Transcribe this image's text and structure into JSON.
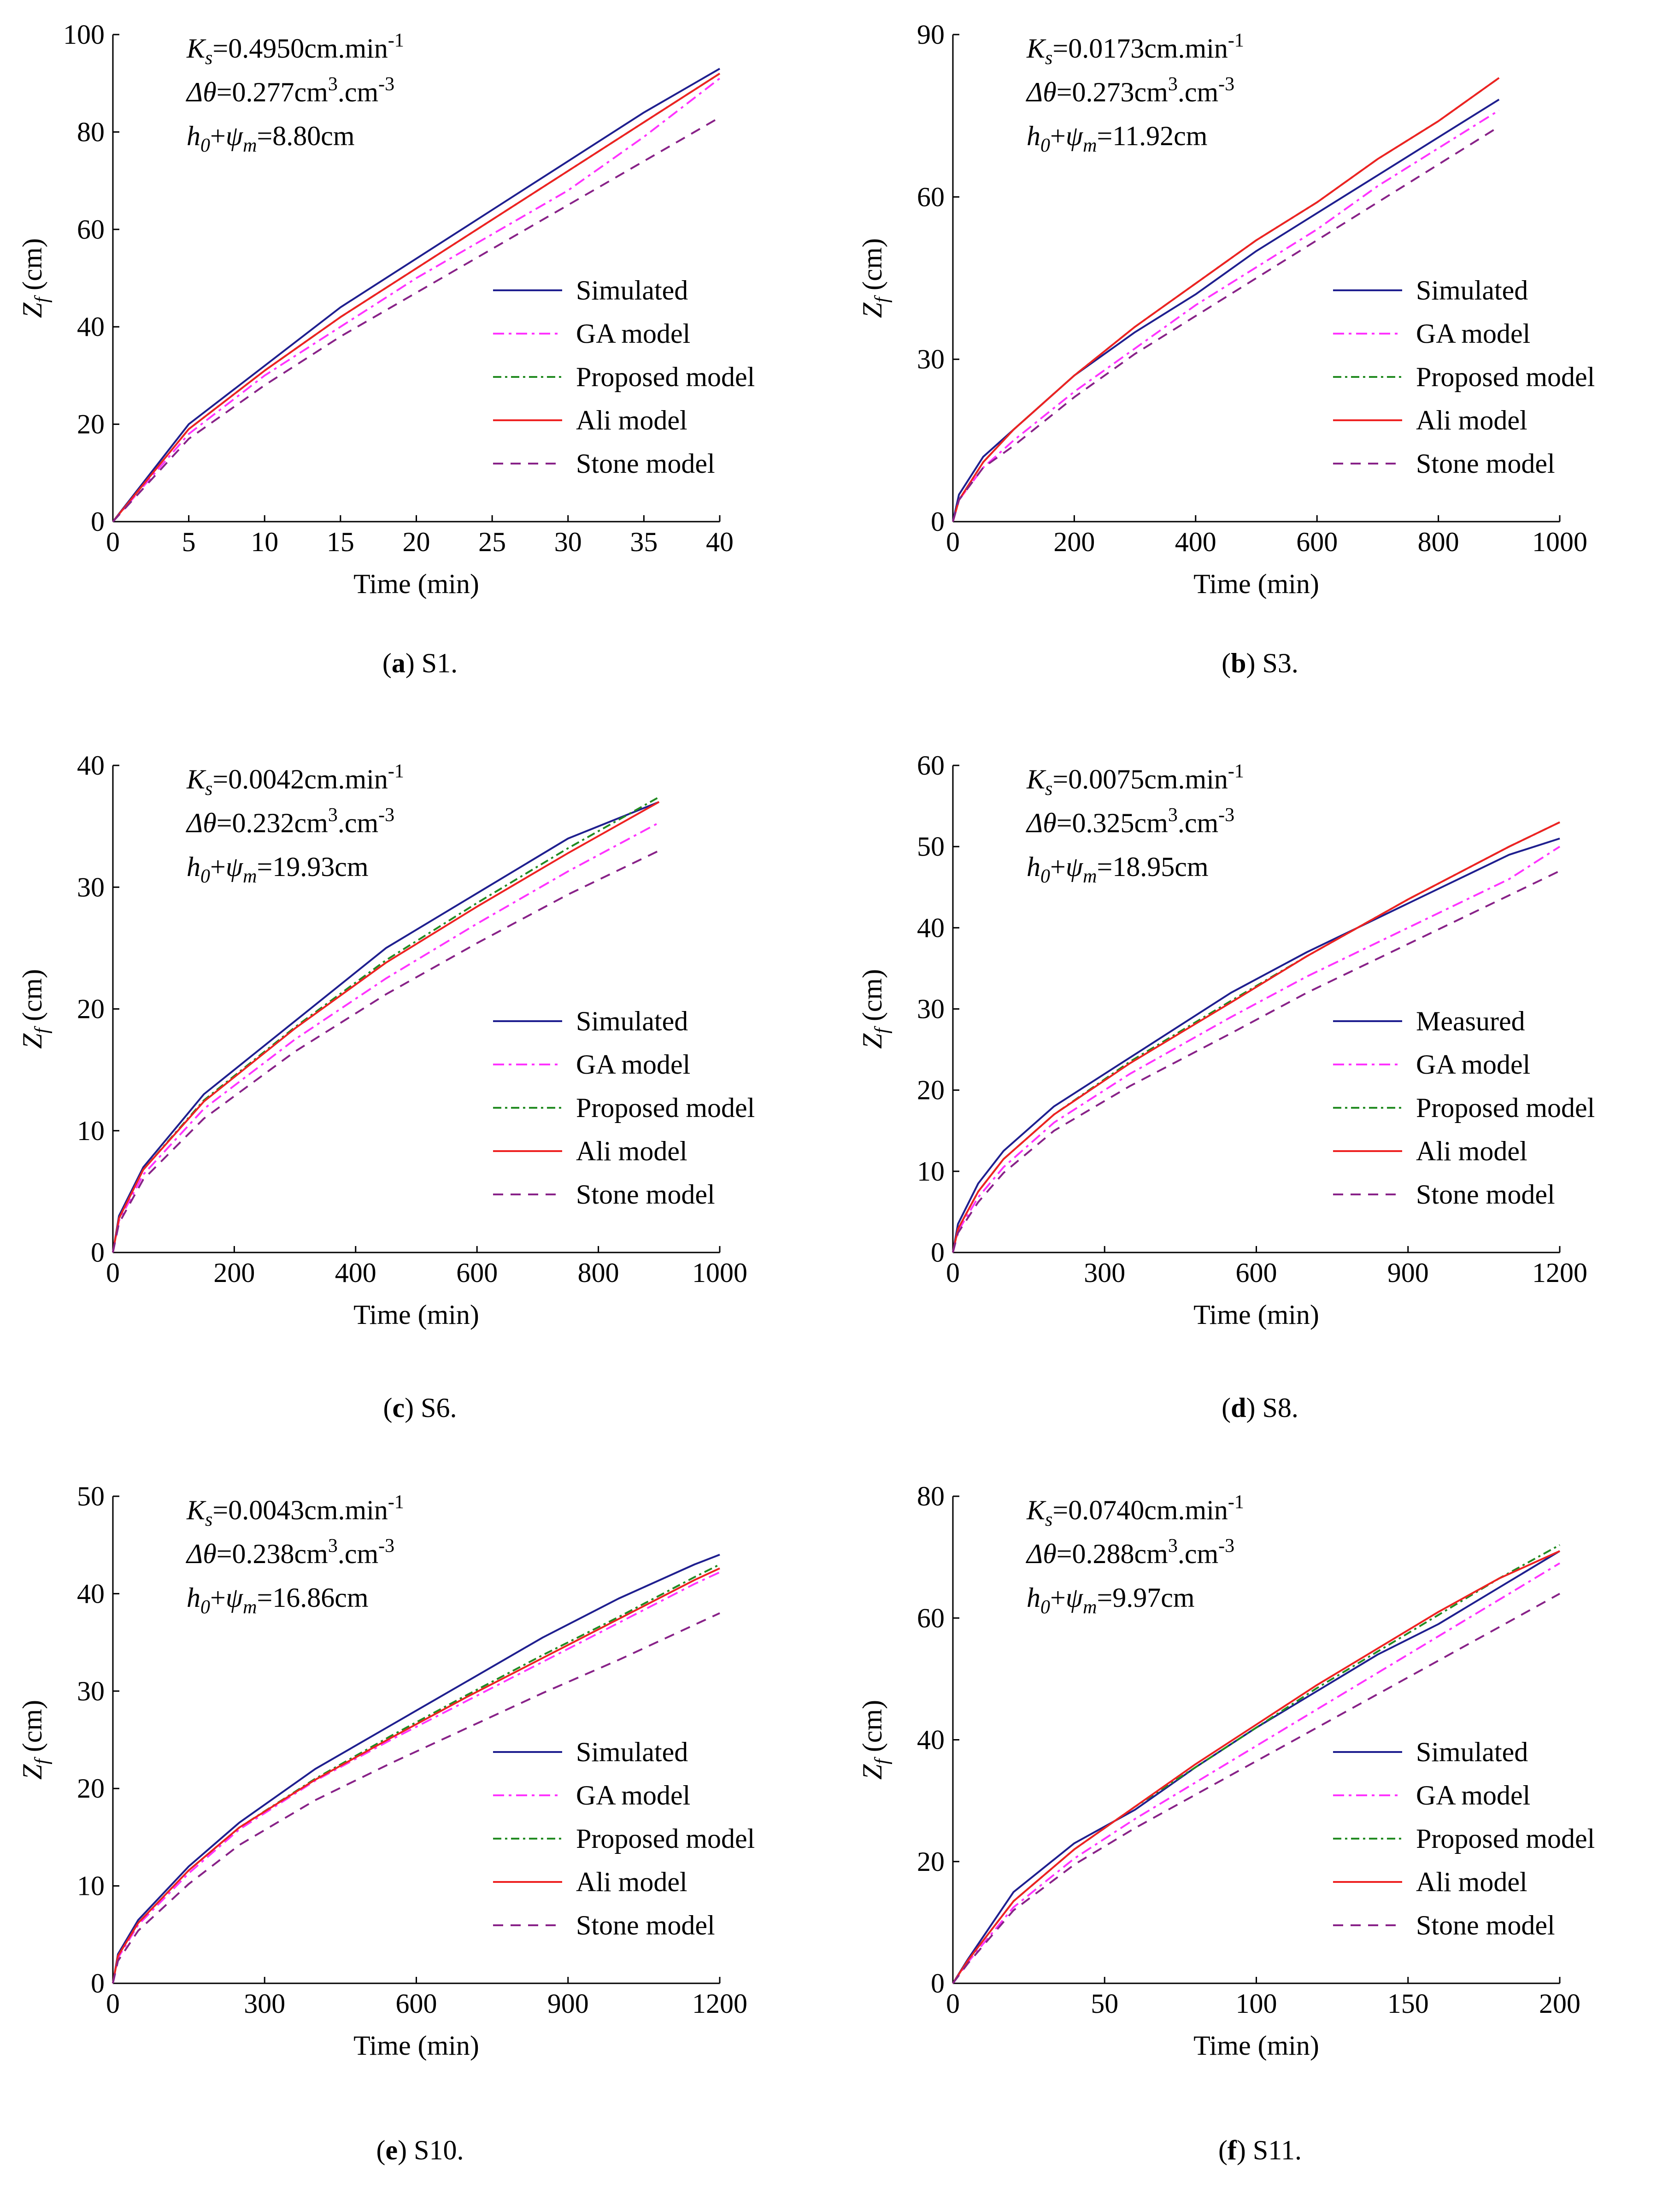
{
  "chart_data": [
    {
      "type": "line",
      "panel_letter": "a",
      "panel_name": "S1.",
      "xlabel": "Time (min)",
      "ylabel_main": "Z",
      "ylabel_sub": "f",
      "ylabel_unit": " (cm)",
      "xlim": [
        0,
        40
      ],
      "ylim": [
        0,
        100
      ],
      "xticks": [
        0,
        5,
        10,
        15,
        20,
        25,
        30,
        35,
        40
      ],
      "yticks": [
        0,
        20,
        40,
        60,
        80,
        100
      ],
      "params": {
        "ks_value": "=0.4950cm.min",
        "ks_exp": "-1",
        "dtheta_value": "=0.277cm",
        "dtheta_mid": ".cm",
        "dtheta_exp": "-3",
        "h_value": "=8.80cm"
      },
      "legend": [
        "Simulated",
        "GA model",
        "Proposed model",
        "Ali model",
        "Stone model"
      ],
      "series": [
        {
          "name": "Simulated",
          "x": [
            0,
            5,
            10,
            15,
            20,
            25,
            30,
            35,
            40
          ],
          "y": [
            0,
            20,
            32,
            44,
            54,
            64,
            74,
            84,
            93
          ]
        },
        {
          "name": "GA model",
          "x": [
            0,
            5,
            10,
            15,
            20,
            25,
            30,
            35,
            40
          ],
          "y": [
            0,
            18,
            30,
            40,
            50,
            59,
            68,
            79,
            91
          ]
        },
        {
          "name": "Proposed model",
          "x": [
            0,
            5,
            10,
            15,
            20,
            25,
            30,
            35,
            40
          ],
          "y": [
            0,
            19,
            31,
            42,
            52,
            62,
            72,
            82,
            92
          ]
        },
        {
          "name": "Ali model",
          "x": [
            0,
            5,
            10,
            15,
            20,
            25,
            30,
            35,
            40
          ],
          "y": [
            0,
            19,
            31,
            42,
            52,
            62,
            72,
            82,
            92
          ]
        },
        {
          "name": "Stone model",
          "x": [
            0,
            5,
            10,
            15,
            20,
            25,
            30,
            35,
            40
          ],
          "y": [
            0,
            17,
            28,
            38,
            47,
            56,
            65,
            74,
            83
          ]
        }
      ]
    },
    {
      "type": "line",
      "panel_letter": "b",
      "panel_name": "S3.",
      "xlabel": "Time (min)",
      "ylabel_main": "Z",
      "ylabel_sub": "f",
      "ylabel_unit": " (cm)",
      "xlim": [
        0,
        1000
      ],
      "ylim": [
        0,
        90
      ],
      "xticks": [
        0,
        200,
        400,
        600,
        800,
        1000
      ],
      "yticks": [
        0,
        30,
        60,
        90
      ],
      "params": {
        "ks_value": "=0.0173cm.min",
        "ks_exp": "-1",
        "dtheta_value": "=0.273cm",
        "dtheta_mid": ".cm",
        "dtheta_exp": "-3",
        "h_value": "=11.92cm"
      },
      "legend": [
        "Simulated",
        "GA model",
        "Proposed model",
        "Ali model",
        "Stone model"
      ],
      "series": [
        {
          "name": "Simulated",
          "x": [
            0,
            10,
            50,
            100,
            200,
            300,
            400,
            500,
            600,
            700,
            800,
            900
          ],
          "y": [
            0,
            5,
            12,
            17,
            27,
            35,
            42,
            50,
            57,
            64,
            71,
            78
          ]
        },
        {
          "name": "GA model",
          "x": [
            0,
            10,
            50,
            100,
            200,
            300,
            400,
            500,
            600,
            700,
            800,
            900
          ],
          "y": [
            0,
            4,
            10,
            15,
            24,
            32,
            40,
            47,
            54,
            62,
            69,
            76
          ]
        },
        {
          "name": "Proposed model",
          "x": [
            0,
            10,
            50,
            100,
            200,
            300,
            400,
            500,
            600,
            700,
            800,
            900
          ],
          "y": [
            0,
            4,
            11,
            17,
            27,
            36,
            44,
            52,
            59,
            67,
            74,
            82
          ]
        },
        {
          "name": "Ali model",
          "x": [
            0,
            10,
            50,
            100,
            200,
            300,
            400,
            500,
            600,
            700,
            800,
            900
          ],
          "y": [
            0,
            4,
            11,
            17,
            27,
            36,
            44,
            52,
            59,
            67,
            74,
            82
          ]
        },
        {
          "name": "Stone model",
          "x": [
            0,
            10,
            50,
            100,
            200,
            300,
            400,
            500,
            600,
            700,
            800,
            900
          ],
          "y": [
            0,
            4,
            10,
            14,
            23,
            31,
            38,
            45,
            52,
            59,
            66,
            73
          ]
        }
      ]
    },
    {
      "type": "line",
      "panel_letter": "c",
      "panel_name": "S6.",
      "xlabel": "Time (min)",
      "ylabel_main": "Z",
      "ylabel_sub": "f",
      "ylabel_unit": " (cm)",
      "xlim": [
        0,
        1000
      ],
      "ylim": [
        0,
        40
      ],
      "xticks": [
        0,
        200,
        400,
        600,
        800,
        1000
      ],
      "yticks": [
        0,
        10,
        20,
        30,
        40
      ],
      "params": {
        "ks_value": "=0.0042cm.min",
        "ks_exp": "-1",
        "dtheta_value": "=0.232cm",
        "dtheta_mid": ".cm",
        "dtheta_exp": "-3",
        "h_value": "=19.93cm"
      },
      "legend": [
        "Simulated",
        "GA model",
        "Proposed model",
        "Ali model",
        "Stone model"
      ],
      "series": [
        {
          "name": "Simulated",
          "x": [
            0,
            10,
            50,
            150,
            300,
            450,
            600,
            750,
            900
          ],
          "y": [
            0,
            3,
            7,
            13,
            19,
            25,
            29.5,
            34,
            37
          ]
        },
        {
          "name": "GA model",
          "x": [
            0,
            10,
            50,
            150,
            300,
            450,
            600,
            750,
            900
          ],
          "y": [
            0,
            2.6,
            6.4,
            11.8,
            17.5,
            22.5,
            27,
            31.3,
            35.3
          ]
        },
        {
          "name": "Proposed model",
          "x": [
            0,
            10,
            50,
            150,
            300,
            450,
            600,
            750,
            900
          ],
          "y": [
            0,
            2.8,
            6.8,
            12.5,
            18.5,
            24,
            28.7,
            33.2,
            37.4
          ]
        },
        {
          "name": "Ali model",
          "x": [
            0,
            10,
            50,
            150,
            300,
            450,
            600,
            750,
            900
          ],
          "y": [
            0,
            2.8,
            6.8,
            12.4,
            18.4,
            23.8,
            28.4,
            32.8,
            37
          ]
        },
        {
          "name": "Stone model",
          "x": [
            0,
            10,
            50,
            150,
            300,
            450,
            600,
            750,
            900
          ],
          "y": [
            0,
            2.4,
            6,
            11,
            16.5,
            21.2,
            25.4,
            29.4,
            33
          ]
        }
      ]
    },
    {
      "type": "line",
      "panel_letter": "d",
      "panel_name": "S8.",
      "xlabel": "Time (min)",
      "ylabel_main": "Z",
      "ylabel_sub": "f",
      "ylabel_unit": " (cm)",
      "xlim": [
        0,
        1200
      ],
      "ylim": [
        0,
        60
      ],
      "xticks": [
        0,
        300,
        600,
        900,
        1200
      ],
      "yticks": [
        0,
        10,
        20,
        30,
        40,
        50,
        60
      ],
      "params": {
        "ks_value": "=0.0075cm.min",
        "ks_exp": "-1",
        "dtheta_value": "=0.325cm",
        "dtheta_mid": ".cm",
        "dtheta_exp": "-3",
        "h_value": "=18.95cm"
      },
      "legend": [
        "Measured",
        "GA model",
        "Proposed model",
        "Ali model",
        "Stone model"
      ],
      "series": [
        {
          "name": "Measured",
          "x": [
            0,
            10,
            50,
            100,
            200,
            350,
            550,
            700,
            900,
            1100,
            1200
          ],
          "y": [
            0,
            3.5,
            8.5,
            12.5,
            18,
            24,
            32,
            37,
            43,
            49,
            51
          ]
        },
        {
          "name": "GA model",
          "x": [
            0,
            10,
            50,
            100,
            200,
            350,
            550,
            700,
            900,
            1100,
            1200
          ],
          "y": [
            0,
            2.6,
            6.8,
            10.5,
            16,
            22,
            29,
            34,
            40,
            46,
            50
          ]
        },
        {
          "name": "Proposed model",
          "x": [
            0,
            10,
            50,
            100,
            200,
            350,
            550,
            700,
            900,
            1100,
            1200
          ],
          "y": [
            0,
            2.9,
            7.5,
            11.5,
            17,
            23.5,
            31,
            36.5,
            43.5,
            50,
            53
          ]
        },
        {
          "name": "Ali model",
          "x": [
            0,
            10,
            50,
            100,
            200,
            350,
            550,
            700,
            900,
            1100,
            1200
          ],
          "y": [
            0,
            2.9,
            7.5,
            11.5,
            17,
            23.3,
            30.8,
            36.5,
            43.5,
            50,
            53
          ]
        },
        {
          "name": "Stone model",
          "x": [
            0,
            10,
            50,
            100,
            200,
            350,
            550,
            700,
            900,
            1100,
            1200
          ],
          "y": [
            0,
            2.4,
            6.2,
            9.8,
            15,
            20.5,
            27,
            32,
            38,
            44,
            47
          ]
        }
      ]
    },
    {
      "type": "line",
      "panel_letter": "e",
      "panel_name": "S10.",
      "xlabel": "Time (min)",
      "ylabel_main": "Z",
      "ylabel_sub": "f",
      "ylabel_unit": " (cm)",
      "xlim": [
        0,
        1200
      ],
      "ylim": [
        0,
        50
      ],
      "xticks": [
        0,
        300,
        600,
        900,
        1200
      ],
      "yticks": [
        0,
        10,
        20,
        30,
        40,
        50
      ],
      "params": {
        "ks_value": "=0.0043cm.min",
        "ks_exp": "-1",
        "dtheta_value": "=0.238cm",
        "dtheta_mid": ".cm",
        "dtheta_exp": "-3",
        "h_value": "=16.86cm"
      },
      "legend": [
        "Simulated",
        "GA model",
        "Proposed model",
        "Ali model",
        "Stone model"
      ],
      "series": [
        {
          "name": "Simulated",
          "x": [
            0,
            10,
            50,
            150,
            250,
            400,
            550,
            700,
            850,
            1000,
            1150,
            1200
          ],
          "y": [
            0,
            3,
            6.5,
            12,
            16.5,
            22,
            26.5,
            31,
            35.5,
            39.5,
            43,
            44
          ]
        },
        {
          "name": "GA model",
          "x": [
            0,
            10,
            50,
            150,
            250,
            400,
            550,
            700,
            850,
            1000,
            1150,
            1200
          ],
          "y": [
            0,
            2.6,
            6,
            11.3,
            15.8,
            20.8,
            25,
            29,
            33,
            37,
            41,
            42.2
          ]
        },
        {
          "name": "Proposed model",
          "x": [
            0,
            10,
            50,
            150,
            250,
            400,
            550,
            700,
            850,
            1000,
            1150,
            1200
          ],
          "y": [
            0,
            2.8,
            6.2,
            11.6,
            16,
            21,
            25.4,
            29.6,
            33.7,
            37.6,
            41.7,
            43
          ]
        },
        {
          "name": "Ali model",
          "x": [
            0,
            10,
            50,
            150,
            250,
            400,
            550,
            700,
            850,
            1000,
            1150,
            1200
          ],
          "y": [
            0,
            2.8,
            6.2,
            11.6,
            16,
            20.9,
            25.2,
            29.4,
            33.4,
            37.4,
            41.4,
            42.6
          ]
        },
        {
          "name": "Stone model",
          "x": [
            0,
            10,
            50,
            150,
            250,
            400,
            550,
            700,
            850,
            1000,
            1150,
            1200
          ],
          "y": [
            0,
            2.3,
            5.4,
            10.2,
            14.2,
            18.8,
            22.6,
            26.2,
            29.8,
            33.2,
            36.8,
            38
          ]
        }
      ]
    },
    {
      "type": "line",
      "panel_letter": "f",
      "panel_name": "S11.",
      "xlabel": "Time (min)",
      "ylabel_main": "Z",
      "ylabel_sub": "f",
      "ylabel_unit": " (cm)",
      "xlim": [
        0,
        200
      ],
      "ylim": [
        0,
        80
      ],
      "xticks": [
        0,
        50,
        100,
        150,
        200
      ],
      "yticks": [
        0,
        20,
        40,
        60,
        80
      ],
      "params": {
        "ks_value": "=0.0740cm.min",
        "ks_exp": "-1",
        "dtheta_value": "=0.288cm",
        "dtheta_mid": ".cm",
        "dtheta_exp": "-3",
        "h_value": "=9.97cm"
      },
      "legend": [
        "Simulated",
        "GA model",
        "Proposed model",
        "Ali model",
        "Stone model"
      ],
      "series": [
        {
          "name": "Simulated",
          "x": [
            0,
            5,
            20,
            40,
            60,
            80,
            100,
            120,
            140,
            160,
            180,
            200
          ],
          "y": [
            0,
            4,
            15,
            23,
            28.5,
            35.5,
            42,
            48,
            54,
            59,
            65,
            71
          ]
        },
        {
          "name": "GA model",
          "x": [
            0,
            5,
            20,
            40,
            60,
            80,
            100,
            120,
            140,
            160,
            180,
            200
          ],
          "y": [
            0,
            3.5,
            12.5,
            20.5,
            27,
            33,
            39,
            45,
            51,
            57,
            63,
            69
          ]
        },
        {
          "name": "Proposed model",
          "x": [
            0,
            5,
            20,
            40,
            60,
            80,
            100,
            120,
            140,
            160,
            180,
            200
          ],
          "y": [
            0,
            3.8,
            13.5,
            22,
            29,
            35.5,
            42,
            48.5,
            54.5,
            60.5,
            66.5,
            72
          ]
        },
        {
          "name": "Ali model",
          "x": [
            0,
            5,
            20,
            40,
            60,
            80,
            100,
            120,
            140,
            160,
            180,
            200
          ],
          "y": [
            0,
            3.8,
            13.5,
            22,
            29,
            36,
            42.5,
            49,
            55,
            61,
            66.5,
            71
          ]
        },
        {
          "name": "Stone model",
          "x": [
            0,
            5,
            20,
            40,
            60,
            80,
            100,
            120,
            140,
            160,
            180,
            200
          ],
          "y": [
            0,
            3.3,
            12,
            19.5,
            25.5,
            31,
            36.5,
            42,
            47.5,
            53,
            58.5,
            64
          ]
        }
      ]
    }
  ],
  "styles": {
    "colors": [
      "#1f1f8f",
      "#ff33ff",
      "#228b22",
      "#ee2222",
      "#882288"
    ],
    "dashes": [
      "none",
      "24,10,6,10",
      "18,8,5,8",
      "none",
      "22,16"
    ]
  }
}
